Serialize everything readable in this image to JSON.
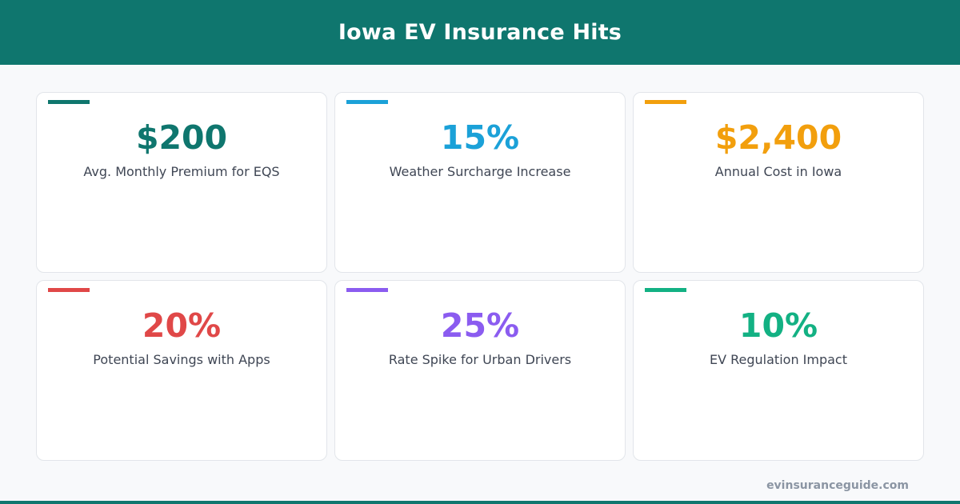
{
  "header": {
    "title": "Iowa EV Insurance Hits"
  },
  "cards": [
    {
      "value": "$200",
      "label": "Avg. Monthly Premium for EQS",
      "color": "#0f766e"
    },
    {
      "value": "15%",
      "label": "Weather Surcharge Increase",
      "color": "#1ba1d8"
    },
    {
      "value": "$2,400",
      "label": "Annual Cost in Iowa",
      "color": "#f29f0d"
    },
    {
      "value": "20%",
      "label": "Potential Savings with Apps",
      "color": "#e04848"
    },
    {
      "value": "25%",
      "label": "Rate Spike for Urban Drivers",
      "color": "#8b5cf0"
    },
    {
      "value": "10%",
      "label": "EV Regulation Impact",
      "color": "#13b183"
    }
  ],
  "footer": {
    "site": "evinsuranceguide.com"
  }
}
